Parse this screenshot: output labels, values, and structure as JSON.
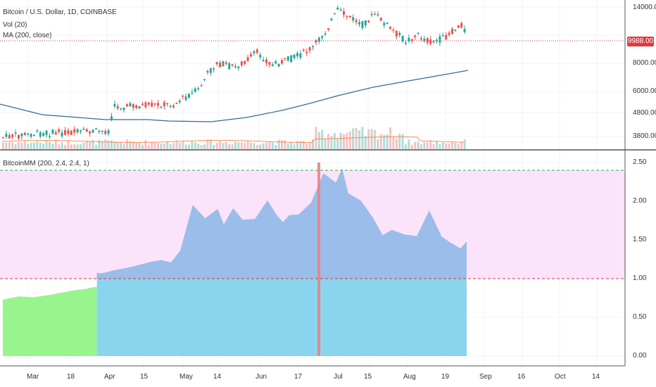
{
  "legend": {
    "title": "Bitcoin / U.S. Dollar, 1D, COINBASE",
    "volume": "Vol (20)",
    "ma": "MA (200, close)",
    "indicator": "BitcoinMM (200, 2.4, 2.4, 1)"
  },
  "last_price_label": "9988.00",
  "colors": {
    "up": "#26a69a",
    "down": "#ef5350",
    "ma_line": "#2e6c98",
    "vol_ma": "#ff8a50",
    "overbought_zone": "#fbe3fa",
    "mm_below": "#98f58e",
    "mm_above": "#8ad5ee",
    "mm_top": "#9bbde9",
    "peak_marker": "#f08080",
    "threshold_top": "#2ab34a",
    "threshold_mid": "#d23a3a"
  },
  "chart_data": [
    {
      "type": "candlestick",
      "title": "Bitcoin / U.S. Dollar, 1D, COINBASE",
      "y_ticks": [
        "14000.00",
        "8000.00",
        "6000.00",
        "4800.00",
        "3800.00"
      ],
      "x_ticks": [
        "Mar",
        "18",
        "Apr",
        "15",
        "May",
        "14",
        "Jun",
        "17",
        "Jul",
        "15",
        "Aug",
        "19",
        "Sep",
        "16",
        "Oct",
        "14"
      ],
      "last_price": 9988,
      "series": [
        {
          "name": "MA (200, close)"
        },
        {
          "name": "Vol (20)"
        }
      ]
    },
    {
      "type": "area",
      "title": "BitcoinMM (200, 2.4, 2.4, 1)",
      "ylim": [
        0,
        2.5
      ],
      "y_ticks": [
        "2.50",
        "2.00",
        "1.50",
        "1.00",
        "0.50",
        "0.00"
      ],
      "upper_threshold": 2.4,
      "lower_threshold": 1.0,
      "peak_value": 2.5,
      "x": [
        1,
        6,
        11,
        16,
        20,
        24,
        28,
        30,
        33,
        37,
        41,
        45,
        49,
        52,
        55,
        58,
        62,
        66,
        70,
        72,
        75,
        78,
        82,
        86,
        89,
        91,
        93,
        96,
        100,
        104,
        108,
        110,
        112,
        116,
        120,
        123,
        126,
        130,
        134,
        138,
        142,
        145,
        148,
        150
      ],
      "values": [
        0.73,
        0.77,
        0.76,
        0.79,
        0.82,
        0.85,
        0.87,
        0.89,
        1.07,
        1.11,
        1.14,
        1.18,
        1.22,
        1.24,
        1.21,
        1.36,
        1.95,
        1.78,
        1.9,
        1.7,
        1.91,
        1.76,
        1.77,
        2.01,
        1.82,
        1.73,
        1.82,
        1.83,
        1.98,
        2.36,
        2.24,
        2.42,
        2.1,
        2.01,
        1.78,
        1.56,
        1.63,
        1.57,
        1.55,
        1.88,
        1.54,
        1.46,
        1.39,
        1.48
      ]
    }
  ]
}
